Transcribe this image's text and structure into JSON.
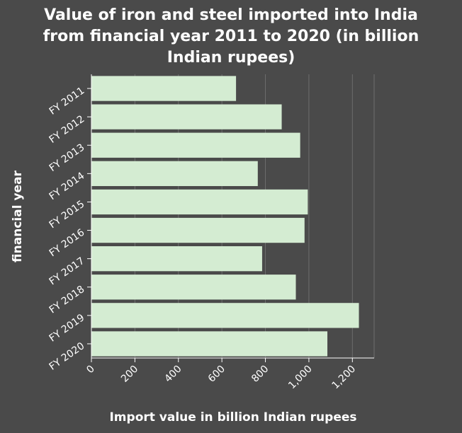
{
  "chart_data": {
    "type": "bar",
    "orientation": "horizontal",
    "title_lines": [
      "Value of iron and steel imported into India",
      "from financial year 2011 to 2020 (in billion",
      "Indian rupees)"
    ],
    "xlabel": "Import value in billion Indian rupees",
    "ylabel": "financial year",
    "categories": [
      "FY 2011",
      "FY 2012",
      "FY 2013",
      "FY 2014",
      "FY 2015",
      "FY 2016",
      "FY 2017",
      "FY 2018",
      "FY 2019",
      "FY 2020"
    ],
    "values": [
      665,
      875,
      960,
      765,
      995,
      980,
      785,
      940,
      1230,
      1085
    ],
    "xlim": [
      0,
      1300
    ],
    "xticks": [
      0,
      200,
      400,
      600,
      800,
      1000,
      1200
    ],
    "xtick_labels": [
      "0",
      "200",
      "400",
      "600",
      "800",
      "1,000",
      "1,200"
    ],
    "grid": "vertical",
    "bar_color": "#d4ecd2",
    "background_color": "#4a4a4a",
    "plot_background_color": "#4a4a4a"
  }
}
